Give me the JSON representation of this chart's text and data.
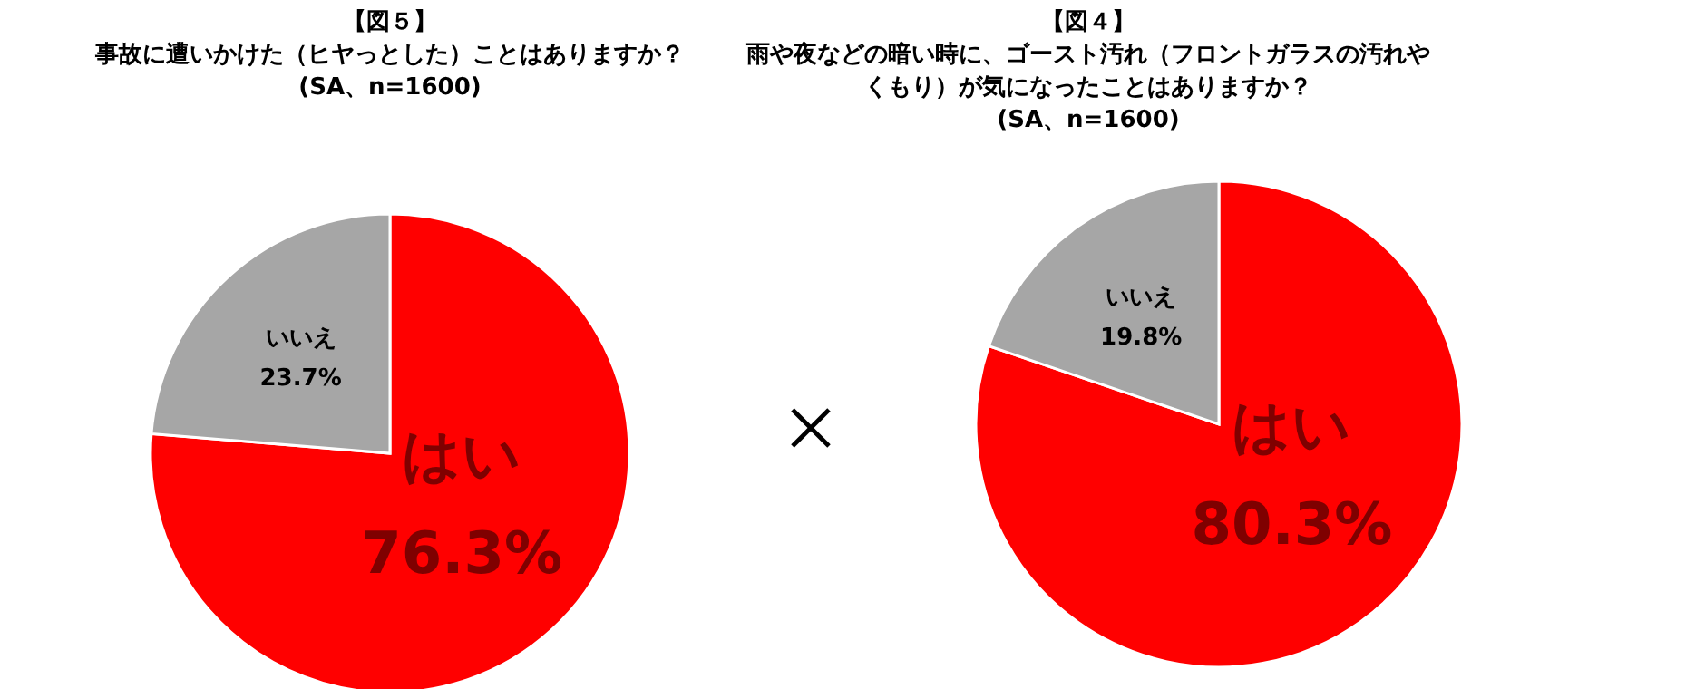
{
  "chart_data": [
    {
      "type": "pie",
      "title": "【図５】",
      "subtitle": "事故に遭いかけた（ヒヤっとした）ことはありますか？",
      "annotations": [
        "(SA、n=1600)"
      ],
      "categories": [
        "はい",
        "いいえ"
      ],
      "values": [
        76.3,
        23.7
      ],
      "colors": [
        "#ff0000",
        "#a6a6a6"
      ],
      "value_labels": [
        "76.3%",
        "23.7%"
      ]
    },
    {
      "type": "pie",
      "title": "【図４】",
      "subtitle": "雨や夜などの暗い時に、ゴースト汚れ（フロントガラスの汚れやくもり）が気になったことはありますか？",
      "annotations": [
        "(SA、n=1600)"
      ],
      "categories": [
        "はい",
        "いいえ"
      ],
      "values": [
        80.3,
        19.8
      ],
      "colors": [
        "#ff0000",
        "#a6a6a6"
      ],
      "value_labels": [
        "80.3%",
        "19.8%"
      ]
    }
  ]
}
